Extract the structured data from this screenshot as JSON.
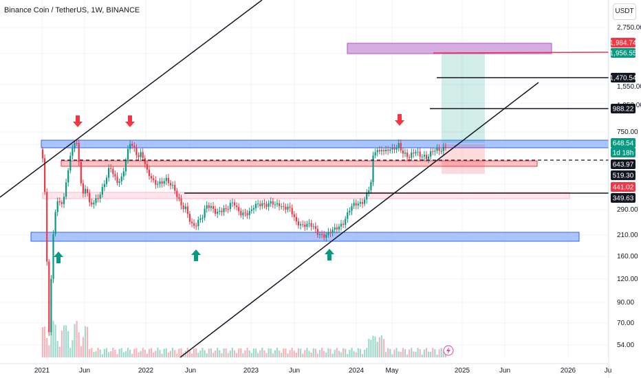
{
  "header": {
    "title": "Binance Coin / TetherUS, 1W, BINANCE",
    "currency": "USDT"
  },
  "chart_data": {
    "type": "candlestick",
    "title": "Binance Coin / TetherUS, 1W, BINANCE",
    "y_scale": "log",
    "y_ticks": [
      2750,
      750,
      290,
      210,
      160,
      120,
      90,
      70,
      54
    ],
    "x_ticks": [
      "2021",
      "Jun",
      "2022",
      "Jun",
      "2023",
      "Jun",
      "2024",
      "May",
      "2025",
      "Jun",
      "2026",
      "Ju"
    ],
    "price_tags": [
      {
        "label": "1,984.74",
        "bg": "#f23645"
      },
      {
        "label": "1,956.55",
        "bg": "#089981"
      },
      {
        "label": "1,470.54",
        "bg": "#131722"
      },
      {
        "label": "988.22",
        "bg": "#131722"
      },
      {
        "label": "648.54",
        "bg": "#089981"
      },
      {
        "label": "1d 18h",
        "bg": "#089981"
      },
      {
        "label": "643.97",
        "bg": "#131722"
      },
      {
        "label": "519.30",
        "bg": "#131722"
      },
      {
        "label": "441.02",
        "bg": "#f23645"
      },
      {
        "label": "349.63",
        "bg": "#131722"
      }
    ],
    "partially_hidden_ticks": [
      "1,550.00",
      "1,050.00"
    ],
    "last_price": 648.54,
    "countdown": "1d 18h",
    "colors": {
      "up": "#089981",
      "down": "#f23645",
      "zone_blue": "#5b8cff",
      "zone_red": "#ff8a8a",
      "zone_purple": "#c58ad6"
    },
    "grid": true,
    "series": [
      {
        "name": "",
        "type": "ohlc_weekly"
      }
    ]
  }
}
